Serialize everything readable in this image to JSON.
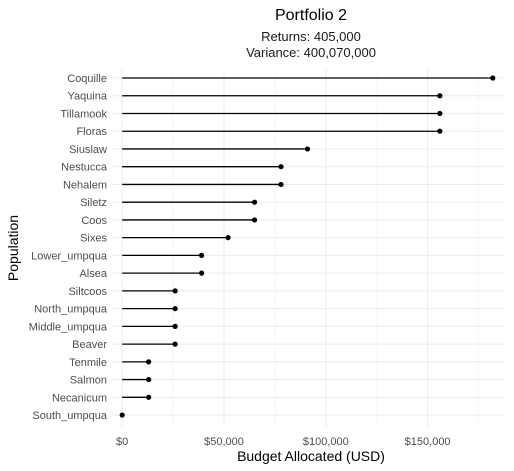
{
  "chart_data": {
    "type": "lollipop",
    "title": "Portfolio 2",
    "subtitle_lines": [
      "Returns: 405,000",
      "Variance: 400,070,000"
    ],
    "xlabel": "Budget Allocated (USD)",
    "ylabel": "Population",
    "xlim": [
      -5000,
      188000
    ],
    "xticks": [
      0,
      50000,
      100000,
      150000
    ],
    "xtick_labels": [
      "$0",
      "$50,000",
      "$100,000",
      "$150,000"
    ],
    "grid": true,
    "colors": {
      "mark": "#000000",
      "grid": "#ebebeb"
    },
    "categories": [
      "Coquille",
      "Yaquina",
      "Tillamook",
      "Floras",
      "Siuslaw",
      "Nestucca",
      "Nehalem",
      "Siletz",
      "Coos",
      "Sixes",
      "Lower_umpqua",
      "Alsea",
      "Siltcoos",
      "North_umpqua",
      "Middle_umpqua",
      "Beaver",
      "Tenmile",
      "Salmon",
      "Necanicum",
      "South_umpqua"
    ],
    "values": [
      182000,
      156000,
      156000,
      156000,
      91000,
      78000,
      78000,
      65000,
      65000,
      52000,
      39000,
      39000,
      26000,
      26000,
      26000,
      26000,
      13000,
      13000,
      13000,
      0
    ]
  }
}
